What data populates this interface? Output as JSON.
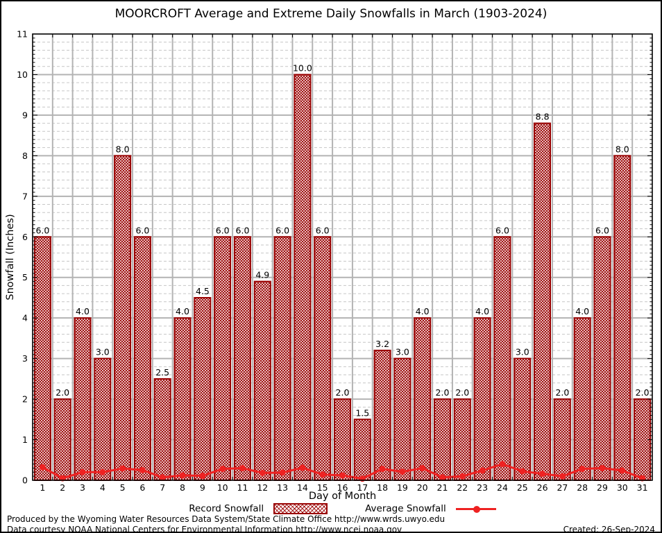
{
  "title": "MOORCROFT Average and Extreme Daily Snowfalls in March (1903-2024)",
  "chart_data": {
    "type": "bar",
    "title": "MOORCROFT Average and Extreme Daily Snowfalls in March (1903-2024)",
    "xlabel": "Day of Month",
    "ylabel": "Snowfall (Inches)",
    "ylim": [
      0,
      11
    ],
    "y_major_step": 1,
    "y_minor_step": 0.2,
    "grid": true,
    "legend_position": "bottom",
    "categories": [
      "1",
      "2",
      "3",
      "4",
      "5",
      "6",
      "7",
      "8",
      "9",
      "10",
      "11",
      "12",
      "13",
      "14",
      "15",
      "16",
      "17",
      "18",
      "19",
      "20",
      "21",
      "22",
      "23",
      "24",
      "25",
      "26",
      "27",
      "28",
      "29",
      "30",
      "31"
    ],
    "series": [
      {
        "name": "Record Snowfall",
        "render": "bar",
        "values": [
          6.0,
          2.0,
          4.0,
          3.0,
          8.0,
          6.0,
          2.5,
          4.0,
          4.5,
          6.0,
          6.0,
          4.9,
          6.0,
          10.0,
          6.0,
          2.0,
          1.5,
          3.2,
          3.0,
          4.0,
          2.0,
          2.0,
          4.0,
          6.0,
          3.0,
          8.8,
          2.0,
          4.0,
          6.0,
          8.0,
          2.0
        ],
        "bar_labels": [
          "6.0",
          "2.0",
          "4.0",
          "3.0",
          "8.0",
          "6.0",
          "2.5",
          "4.0",
          "4.5",
          "6.0",
          "6.0",
          "4.9",
          "6.0",
          "10.0",
          "6.0",
          "2.0",
          "1.5",
          "3.2",
          "3.0",
          "4.0",
          "2.0",
          "2.0",
          "4.0",
          "6.0",
          "3.0",
          "8.8",
          "2.0",
          "4.0",
          "6.0",
          "8.0",
          "2.0"
        ],
        "color": "#990000"
      },
      {
        "name": "Average Snowfall",
        "render": "line",
        "values": [
          0.32,
          0.05,
          0.2,
          0.2,
          0.29,
          0.25,
          0.07,
          0.12,
          0.11,
          0.28,
          0.3,
          0.18,
          0.19,
          0.31,
          0.14,
          0.12,
          0.04,
          0.28,
          0.21,
          0.3,
          0.07,
          0.1,
          0.24,
          0.4,
          0.22,
          0.16,
          0.1,
          0.28,
          0.3,
          0.24,
          0.05
        ],
        "color": "#ee2222"
      }
    ],
    "colors": {
      "bar_border": "#990000",
      "bar_hatch": "#990000",
      "avg_line": "#ee2222",
      "grid_major": "#b3b3b3",
      "grid_minor": "#c6c6c6",
      "axis": "#000000"
    },
    "y_tick_labels": [
      "0",
      "1",
      "2",
      "3",
      "4",
      "5",
      "6",
      "7",
      "8",
      "9",
      "10",
      "11"
    ]
  },
  "legend": {
    "record_label": "Record Snowfall",
    "average_label": "Average Snowfall"
  },
  "footer": {
    "line1": "Produced by the Wyoming Water Resources Data System/State Climate Office http://www.wrds.uwyo.edu",
    "line2": "Data courtesy NOAA National Centers for Environmental Information http://www.ncei.noaa.gov",
    "created": "Created: 26-Sep-2024"
  }
}
